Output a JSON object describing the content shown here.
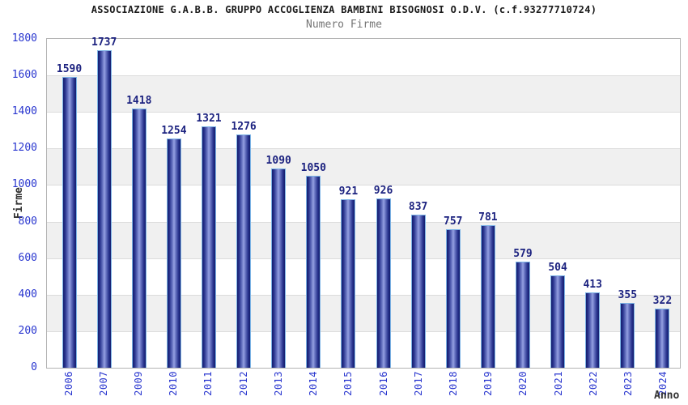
{
  "header": {
    "title": "ASSOCIAZIONE G.A.B.B. GRUPPO ACCOGLIENZA BAMBINI BISOGNOSI O.D.V. (c.f.93277710724)",
    "subtitle": "Numero Firme"
  },
  "chart_data": {
    "type": "bar",
    "title": "ASSOCIAZIONE G.A.B.B. GRUPPO ACCOGLIENZA BAMBINI BISOGNOSI O.D.V. (c.f.93277710724)",
    "subtitle": "Numero Firme",
    "xlabel": "Anno",
    "ylabel": "Firme",
    "categories": [
      "2006",
      "2007",
      "2009",
      "2010",
      "2011",
      "2012",
      "2013",
      "2014",
      "2015",
      "2016",
      "2017",
      "2018",
      "2019",
      "2020",
      "2021",
      "2022",
      "2023",
      "2024"
    ],
    "values": [
      1590,
      1737,
      1418,
      1254,
      1321,
      1276,
      1090,
      1050,
      921,
      926,
      837,
      757,
      781,
      579,
      504,
      413,
      355,
      322
    ],
    "ylim": [
      0,
      1800
    ],
    "yticks": [
      0,
      200,
      400,
      600,
      800,
      1000,
      1200,
      1400,
      1600,
      1800
    ],
    "legend": "none",
    "grid": "alternating horizontal bands every 200",
    "data_labels": "above bars"
  },
  "colors": {
    "bar_dark": "#141e6e",
    "bar_light": "#96a1e2",
    "bar_outline": "#7db4e6",
    "value_label": "#1d2380",
    "tick_label": "#2936cf",
    "band_gray": "#f0f0f0",
    "gridline": "#dcdcdc",
    "plot_border": "#b3b3b3",
    "title": "#1a1a1a",
    "subtitle": "#757575",
    "axis_title": "#333333"
  }
}
